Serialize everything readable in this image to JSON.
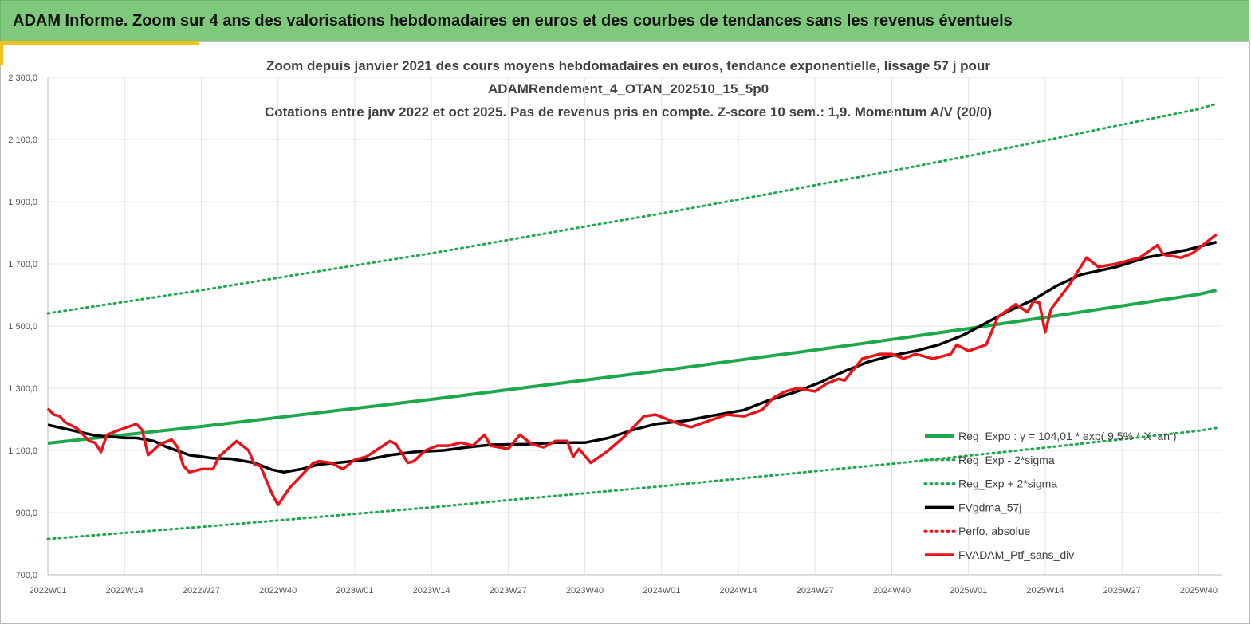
{
  "header": {
    "title": "ADAM Informe. Zoom sur 4 ans des valorisations hebdomadaires en euros et des courbes de tendances sans les revenus éventuels"
  },
  "chart_data": {
    "type": "line",
    "title": [
      "Zoom depuis janvier 2021 des cours moyens hebdomadaires  en euros, tendance exponentielle, lissage 57 j pour",
      "ADAMRendement_4_OTAN_202510_15_5p0",
      "Cotations  entre janv 2022 et oct 2025. Pas de revenus pris en compte. Z-score 10 sem.: 1,9. Momentum A/V (20/0)"
    ],
    "xlim": [
      0,
      199
    ],
    "xticks": [
      {
        "value": 0,
        "label": "2022W01"
      },
      {
        "value": 13,
        "label": "2022W14"
      },
      {
        "value": 26,
        "label": "2022W27"
      },
      {
        "value": 39,
        "label": "2022W40"
      },
      {
        "value": 52,
        "label": "2023W01"
      },
      {
        "value": 65,
        "label": "2023W14"
      },
      {
        "value": 78,
        "label": "2023W27"
      },
      {
        "value": 91,
        "label": "2023W40"
      },
      {
        "value": 104,
        "label": "2024W01"
      },
      {
        "value": 117,
        "label": "2024W14"
      },
      {
        "value": 130,
        "label": "2024W27"
      },
      {
        "value": 143,
        "label": "2024W40"
      },
      {
        "value": 156,
        "label": "2025W01"
      },
      {
        "value": 169,
        "label": "2025W14"
      },
      {
        "value": 182,
        "label": "2025W27"
      },
      {
        "value": 195,
        "label": "2025W40"
      }
    ],
    "ylim": [
      700,
      2300
    ],
    "yticks": [
      {
        "value": 700,
        "label": "700,0"
      },
      {
        "value": 900,
        "label": "900,0"
      },
      {
        "value": 1100,
        "label": "1 100,0"
      },
      {
        "value": 1300,
        "label": "1 300,0"
      },
      {
        "value": 1500,
        "label": "1 500,0"
      },
      {
        "value": 1700,
        "label": "1 700,0"
      },
      {
        "value": 1900,
        "label": "1 900,0"
      },
      {
        "value": 2100,
        "label": "2 100,0"
      },
      {
        "value": 2300,
        "label": "2 300,0"
      }
    ],
    "grid": true,
    "legend": "bottom-right",
    "series": [
      {
        "name": "Reg_Expo : y = 104,01 * exp( 9,5% * X_an )",
        "color": "#1ea84e",
        "dash": "solid",
        "width": 4,
        "x": [
          0,
          13,
          26,
          39,
          52,
          65,
          78,
          91,
          104,
          117,
          130,
          143,
          156,
          169,
          182,
          195,
          198
        ],
        "values": [
          1123,
          1150,
          1177,
          1206,
          1235,
          1264,
          1295,
          1326,
          1357,
          1390,
          1423,
          1457,
          1492,
          1528,
          1565,
          1602,
          1615
        ]
      },
      {
        "name": "Reg_Exp - 2*sigma",
        "color": "#1ea84e",
        "dash": "dotted",
        "width": 3,
        "x": [
          0,
          13,
          26,
          39,
          52,
          65,
          78,
          91,
          104,
          117,
          130,
          143,
          156,
          169,
          182,
          195,
          198
        ],
        "values": [
          815,
          835,
          854,
          875,
          896,
          917,
          940,
          962,
          985,
          1009,
          1033,
          1057,
          1083,
          1109,
          1136,
          1163,
          1172
        ]
      },
      {
        "name": "Reg_Exp + 2*sigma",
        "color": "#1ea84e",
        "dash": "dotted",
        "width": 3,
        "x": [
          0,
          13,
          26,
          39,
          52,
          65,
          78,
          91,
          104,
          117,
          130,
          143,
          156,
          169,
          182,
          195,
          198
        ],
        "values": [
          1541,
          1578,
          1615,
          1655,
          1695,
          1734,
          1777,
          1820,
          1862,
          1907,
          1953,
          1999,
          2047,
          2097,
          2148,
          2198,
          2215
        ]
      },
      {
        "name": "FVgdma_57j",
        "color": "#000000",
        "dash": "solid",
        "width": 3.5,
        "x": [
          0,
          8,
          13,
          15,
          18,
          20,
          24,
          28,
          31,
          35,
          38,
          40,
          43,
          46,
          50,
          54,
          58,
          62,
          67,
          71,
          75,
          81,
          86,
          91,
          95,
          99,
          103,
          108,
          112,
          118,
          122,
          127,
          131,
          135,
          139,
          143,
          147,
          151,
          155,
          159,
          163,
          167,
          171,
          175,
          181,
          186,
          193,
          198
        ],
        "values": [
          1182,
          1148,
          1140,
          1140,
          1130,
          1112,
          1085,
          1075,
          1073,
          1060,
          1038,
          1030,
          1040,
          1055,
          1062,
          1070,
          1085,
          1095,
          1100,
          1110,
          1118,
          1120,
          1125,
          1125,
          1140,
          1165,
          1185,
          1195,
          1210,
          1230,
          1260,
          1290,
          1320,
          1355,
          1385,
          1405,
          1420,
          1440,
          1470,
          1510,
          1550,
          1585,
          1630,
          1665,
          1690,
          1720,
          1745,
          1770
        ]
      },
      {
        "name": "Perfo. absolue",
        "color": "#e8141b",
        "dash": "dotted",
        "width": 3,
        "x": [],
        "values": []
      },
      {
        "name": "FVADAM_Ptf_sans_div",
        "color": "#e8141b",
        "dash": "solid",
        "width": 3.5,
        "x": [
          0,
          1,
          2,
          3,
          5,
          7,
          8,
          9,
          10,
          12,
          15,
          16,
          17,
          19,
          21,
          22,
          23,
          24,
          26,
          28,
          29,
          32,
          34,
          35,
          36,
          38,
          39,
          41,
          43,
          45,
          46,
          48,
          50,
          52,
          54,
          56,
          58,
          59,
          61,
          62,
          64,
          66,
          68,
          70,
          72,
          74,
          75,
          78,
          80,
          82,
          84,
          86,
          88,
          89,
          90,
          92,
          95,
          98,
          101,
          103,
          105,
          107,
          109,
          112,
          115,
          118,
          121,
          123,
          125,
          127,
          130,
          132,
          134,
          135,
          138,
          141,
          143,
          145,
          147,
          150,
          153,
          154,
          156,
          159,
          161,
          164,
          166,
          167,
          168,
          169,
          170,
          173,
          176,
          178,
          181,
          185,
          188,
          189,
          192,
          194,
          198
        ],
        "values": [
          1235,
          1215,
          1210,
          1190,
          1170,
          1130,
          1125,
          1095,
          1150,
          1165,
          1185,
          1165,
          1085,
          1120,
          1135,
          1110,
          1050,
          1030,
          1040,
          1040,
          1080,
          1130,
          1100,
          1055,
          1050,
          960,
          925,
          980,
          1020,
          1060,
          1065,
          1060,
          1040,
          1070,
          1080,
          1105,
          1130,
          1120,
          1060,
          1065,
          1100,
          1115,
          1115,
          1125,
          1115,
          1150,
          1115,
          1105,
          1150,
          1120,
          1110,
          1130,
          1130,
          1080,
          1105,
          1060,
          1100,
          1150,
          1210,
          1215,
          1200,
          1185,
          1175,
          1195,
          1215,
          1210,
          1230,
          1270,
          1290,
          1300,
          1290,
          1315,
          1330,
          1325,
          1395,
          1410,
          1410,
          1395,
          1410,
          1395,
          1410,
          1440,
          1420,
          1440,
          1530,
          1570,
          1545,
          1580,
          1575,
          1480,
          1555,
          1630,
          1720,
          1690,
          1700,
          1720,
          1760,
          1730,
          1720,
          1735,
          1795
        ]
      }
    ]
  }
}
